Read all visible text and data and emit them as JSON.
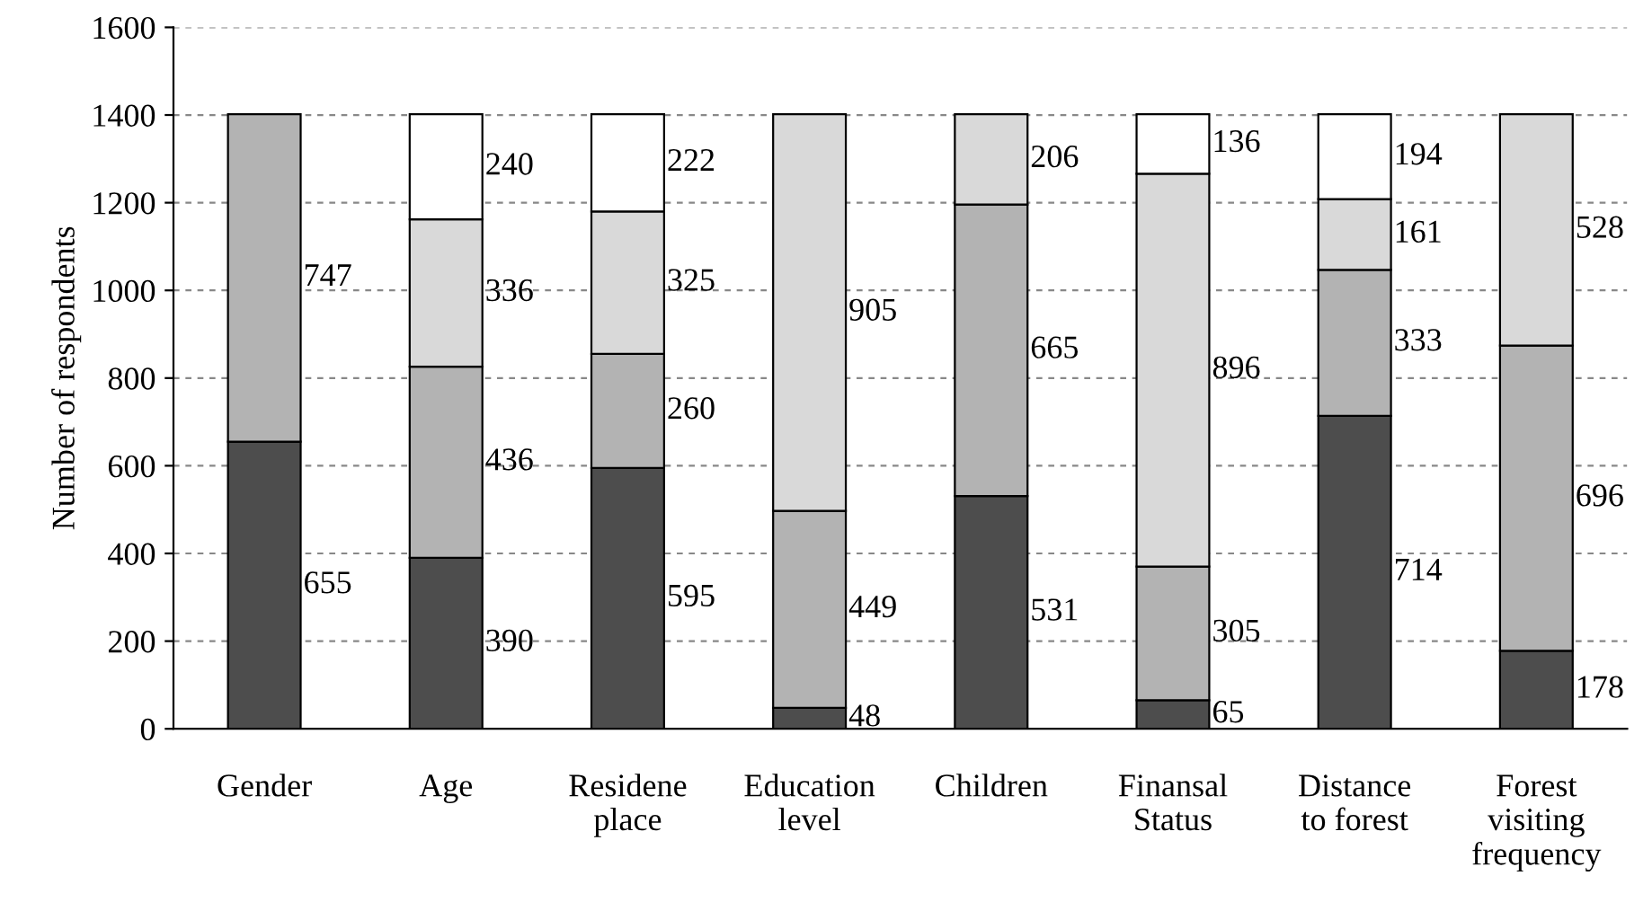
{
  "chart_data": {
    "type": "bar",
    "stacked": true,
    "ylabel": "Number of respondents",
    "categories": [
      "Gender",
      "Age",
      "Residene\nplace",
      "Education\nlevel",
      "Children",
      "Finansal\nStatus",
      "Distance\nto forest",
      "Forest\nvisiting\nfrequency"
    ],
    "series": [
      {
        "color": "#4d4d4d",
        "values": [
          655,
          390,
          595,
          48,
          531,
          65,
          714,
          178
        ]
      },
      {
        "color": "#b3b3b3",
        "values": [
          747,
          436,
          260,
          449,
          665,
          305,
          333,
          696
        ]
      },
      {
        "color": "#d9d9d9",
        "values": [
          null,
          336,
          325,
          905,
          206,
          896,
          161,
          528
        ]
      },
      {
        "color": "#ffffff",
        "values": [
          null,
          240,
          222,
          null,
          null,
          136,
          194,
          null
        ]
      }
    ],
    "data_labels": true,
    "ylim": [
      0,
      1600
    ],
    "yticks": [
      0,
      200,
      400,
      600,
      800,
      1000,
      1200,
      1400,
      1600
    ],
    "grid": "y",
    "legend": false
  }
}
